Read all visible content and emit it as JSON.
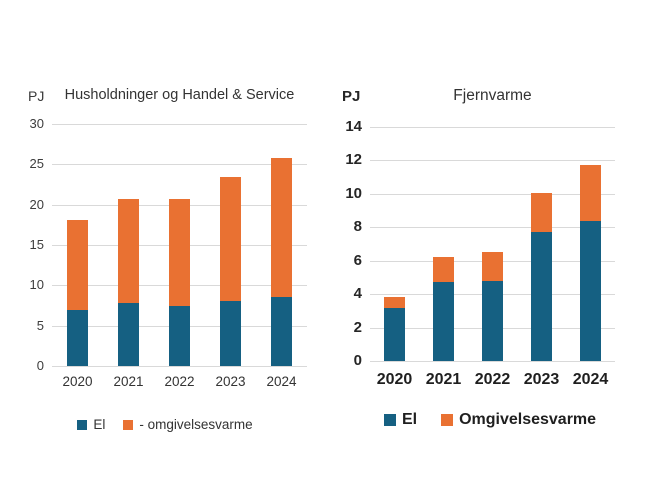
{
  "page": {
    "background": "#FFFFFF"
  },
  "colors": {
    "el": "#156082",
    "omgivelsesvarme": "#E97132",
    "gridline": "#D9D9D9",
    "text": "#3A3A3A"
  },
  "chart_data": [
    {
      "type": "bar",
      "stacked": true,
      "title": "Husholdninger og Handel & Service",
      "unit": "PJ",
      "xlabel": "",
      "ylabel": "PJ",
      "categories": [
        "2020",
        "2021",
        "2022",
        "2023",
        "2024"
      ],
      "series": [
        {
          "name": "El",
          "color": "#156082",
          "values": [
            7.0,
            7.8,
            7.5,
            8.0,
            8.5
          ]
        },
        {
          "name": "- omgivelsesvarme",
          "color": "#E97132",
          "values": [
            11.1,
            12.9,
            13.2,
            15.4,
            17.3
          ]
        }
      ],
      "totals": [
        18.1,
        20.7,
        20.7,
        23.4,
        25.8
      ],
      "ylim": [
        0,
        30
      ],
      "yticks": [
        0,
        5,
        10,
        15,
        20,
        25,
        30
      ],
      "grid": true,
      "legend_position": "bottom",
      "legend": [
        "El",
        "- omgivelsesvarme"
      ]
    },
    {
      "type": "bar",
      "stacked": true,
      "title": "Fjernvarme",
      "unit": "PJ",
      "xlabel": "",
      "ylabel": "PJ",
      "categories": [
        "2020",
        "2021",
        "2022",
        "2023",
        "2024"
      ],
      "series": [
        {
          "name": "El",
          "color": "#156082",
          "values": [
            3.2,
            4.7,
            4.8,
            7.7,
            8.4
          ]
        },
        {
          "name": "Omgivelsesvarme",
          "color": "#E97132",
          "values": [
            0.65,
            1.5,
            1.7,
            2.35,
            3.35
          ]
        }
      ],
      "totals": [
        3.85,
        6.2,
        6.5,
        10.05,
        11.75
      ],
      "ylim": [
        0,
        14
      ],
      "yticks": [
        0,
        2,
        4,
        6,
        8,
        10,
        12,
        14
      ],
      "grid": true,
      "legend_position": "bottom",
      "legend": [
        "El",
        "Omgivelsesvarme"
      ]
    }
  ]
}
